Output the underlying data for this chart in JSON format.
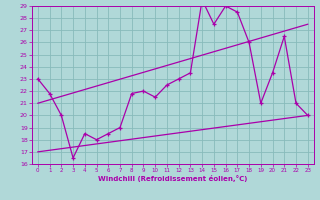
{
  "title": "",
  "xlabel": "Windchill (Refroidissement éolien,°C)",
  "ylabel": "",
  "xlim": [
    -0.5,
    23.5
  ],
  "ylim": [
    16,
    29
  ],
  "xticks": [
    0,
    1,
    2,
    3,
    4,
    5,
    6,
    7,
    8,
    9,
    10,
    11,
    12,
    13,
    14,
    15,
    16,
    17,
    18,
    19,
    20,
    21,
    22,
    23
  ],
  "yticks": [
    16,
    17,
    18,
    19,
    20,
    21,
    22,
    23,
    24,
    25,
    26,
    27,
    28,
    29
  ],
  "bg_color": "#b0d8d8",
  "line_color": "#aa00aa",
  "grid_color": "#88bbbb",
  "line1_x": [
    0,
    1,
    2,
    3,
    4,
    5,
    6,
    7,
    8,
    9,
    10,
    11,
    12,
    13,
    14,
    15,
    16,
    17,
    18,
    19,
    20,
    21,
    22,
    23
  ],
  "line1_y": [
    23,
    21.8,
    20,
    16.5,
    18.5,
    18,
    18.5,
    19,
    21.8,
    22,
    21.5,
    22.5,
    23,
    23.5,
    29.5,
    27.5,
    29,
    28.5,
    26,
    21,
    23.5,
    26.5,
    21,
    20
  ],
  "line2_x": [
    0,
    23
  ],
  "line2_y": [
    21.0,
    27.5
  ],
  "line3_x": [
    0,
    23
  ],
  "line3_y": [
    17.0,
    20.0
  ]
}
